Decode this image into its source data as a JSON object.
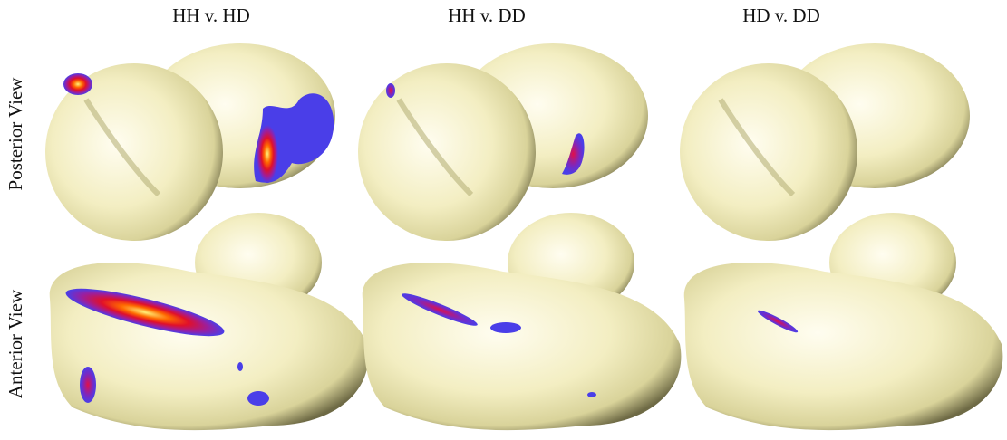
{
  "columns": [
    "HH v. HD",
    "HH v. DD",
    "HD v. DD"
  ],
  "rows": [
    "Posterior View",
    "Anterior View"
  ]
}
